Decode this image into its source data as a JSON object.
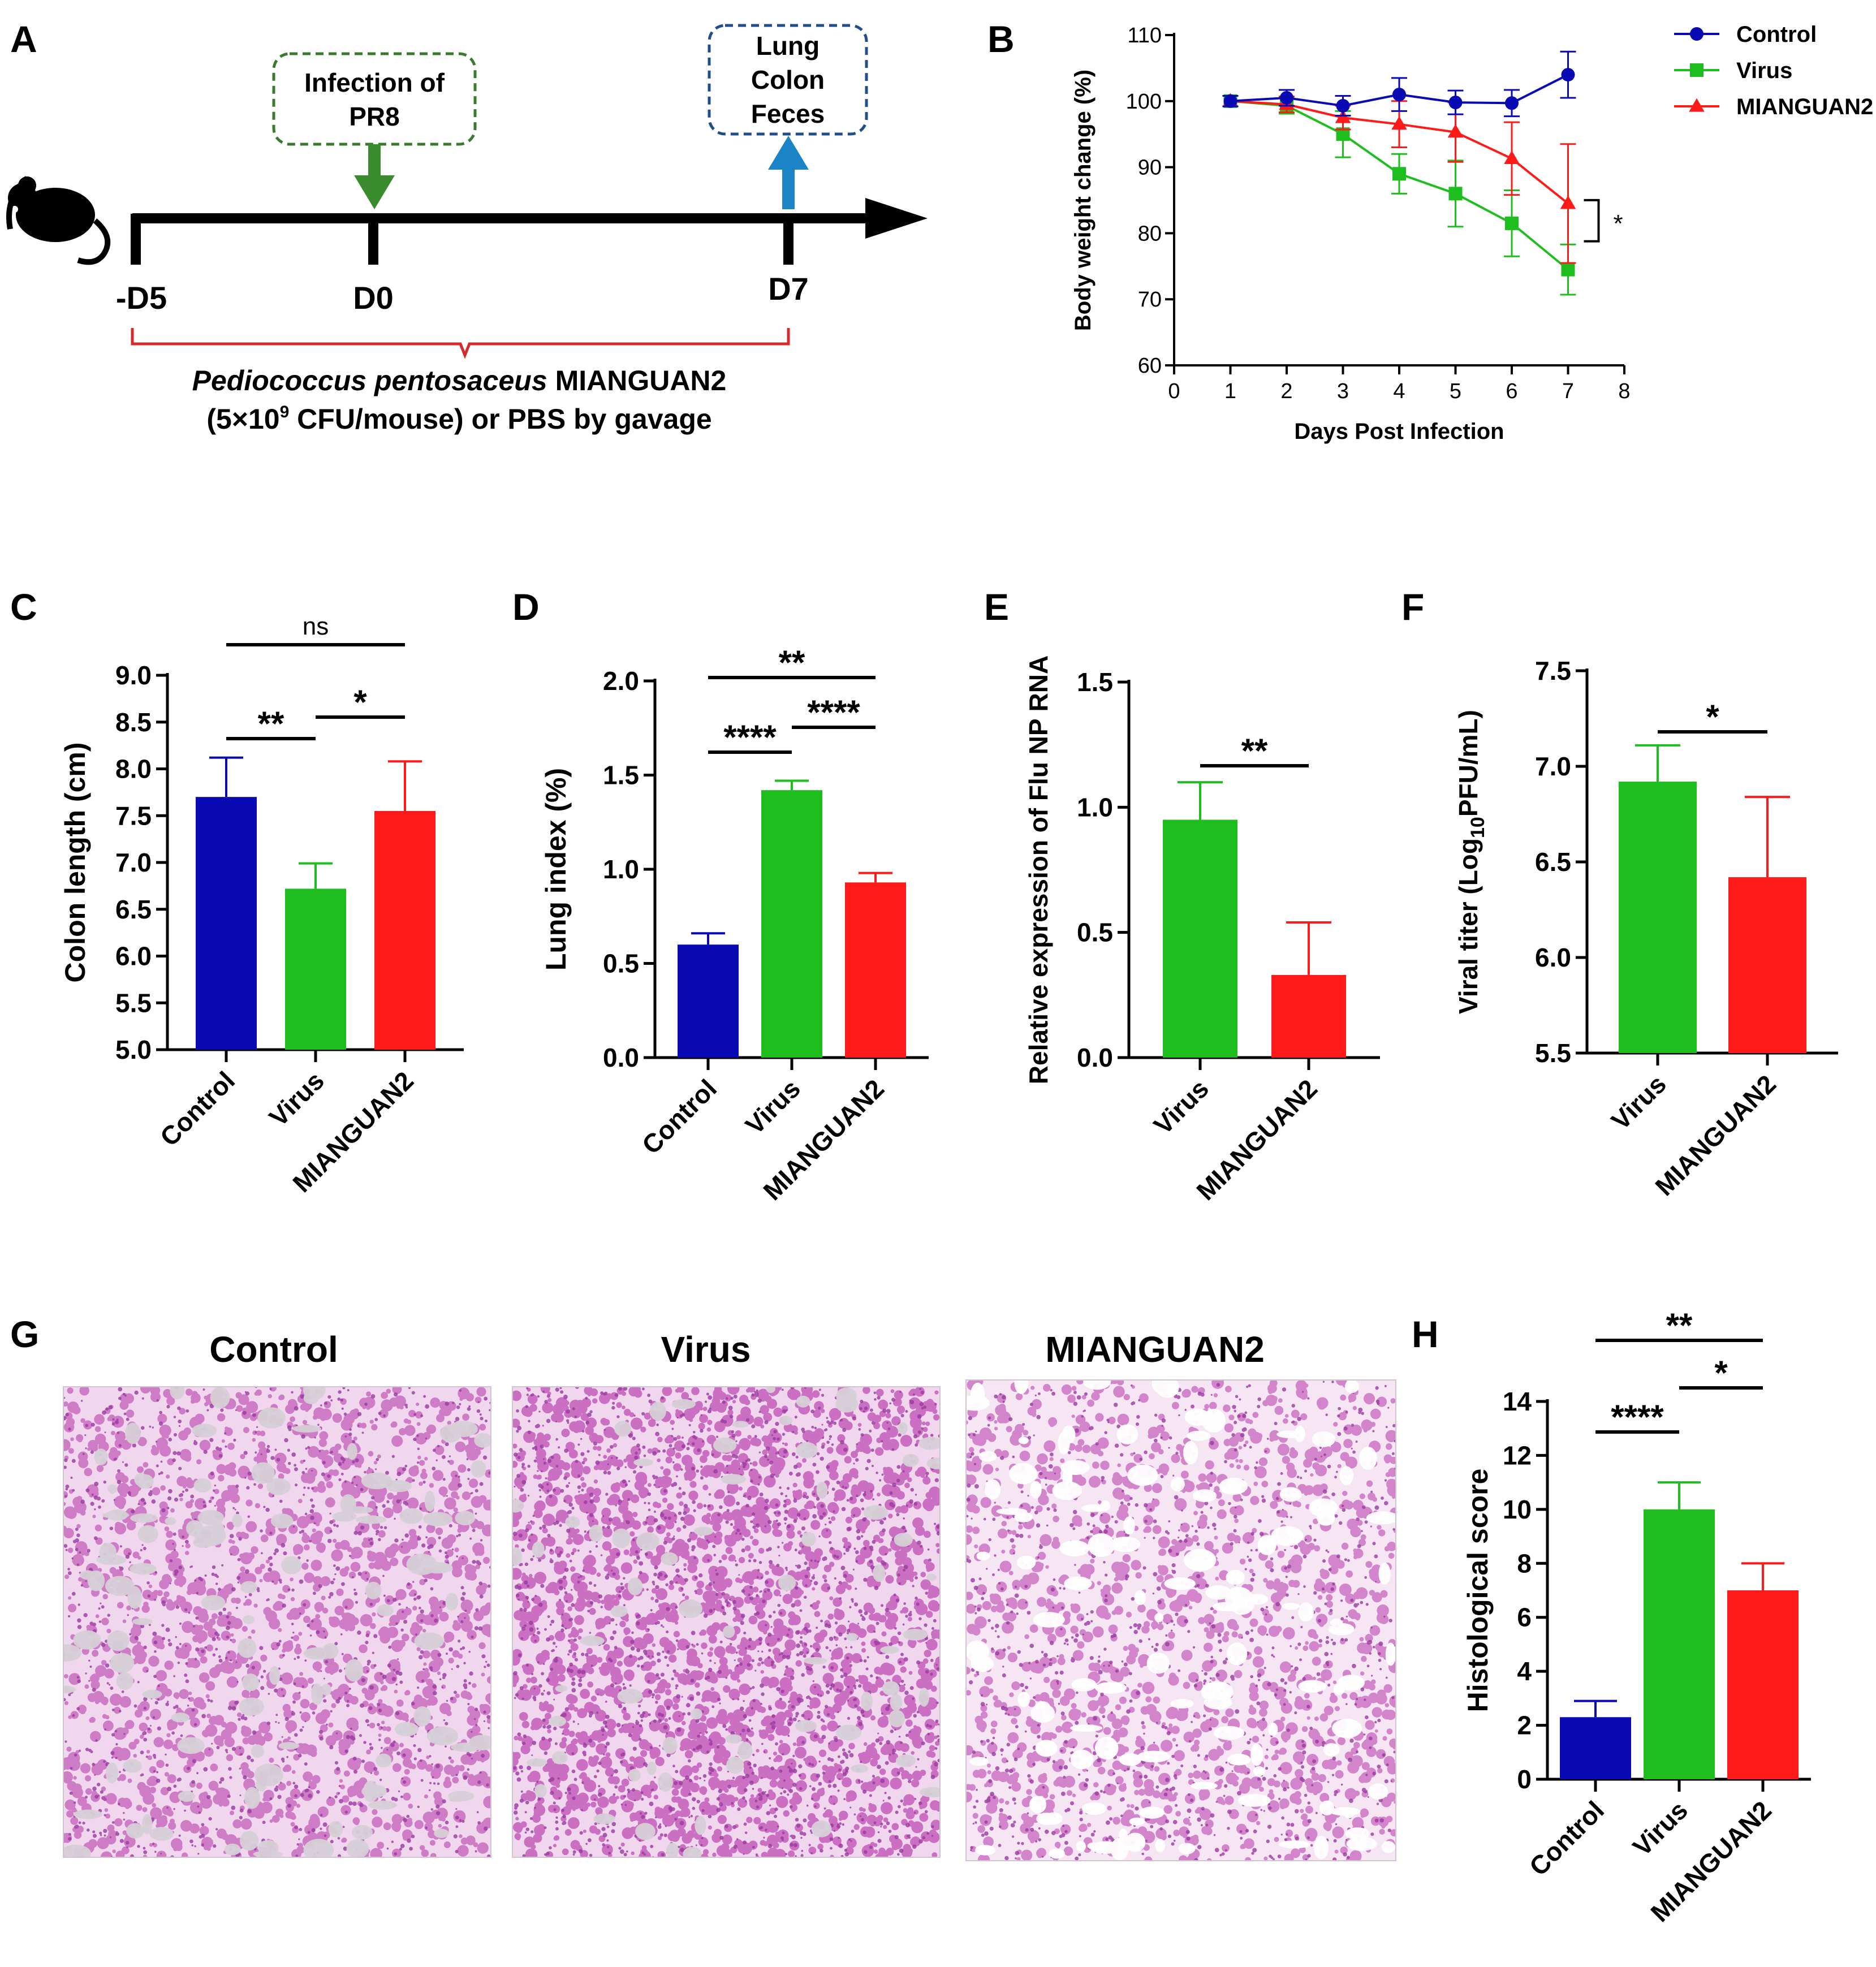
{
  "panels": {
    "A": {
      "letter": "A",
      "box_infection": [
        "Infection of",
        "PR8"
      ],
      "box_collect": [
        "Lung",
        "Colon",
        "Feces"
      ],
      "ticks": [
        "-D5",
        "D0",
        "D7"
      ],
      "treatment_italic": "Pediococcus pentosaceus",
      "treatment_strain": "MIANGUAN2",
      "dose_prefix": "(5×10",
      "dose_exp": "9",
      "dose_suffix": " CFU/mouse)  or PBS by gavage"
    },
    "B": {
      "letter": "B"
    },
    "C": {
      "letter": "C"
    },
    "D": {
      "letter": "D"
    },
    "E": {
      "letter": "E"
    },
    "F": {
      "letter": "F"
    },
    "G": {
      "letter": "G",
      "titles": [
        "Control",
        "Virus",
        "MIANGUAN2"
      ],
      "tissue_colors": {
        "bg": "#f0d7ee",
        "stain": "#c052b5",
        "dense": "#9a3aa0",
        "space": "#d6d0d6"
      },
      "density": [
        0.45,
        0.8,
        0.35
      ]
    },
    "H": {
      "letter": "H"
    }
  },
  "colors": {
    "control": "#0a0ab4",
    "virus": "#1ebe1e",
    "mianguan2": "#ff1a1a",
    "axis": "#000000",
    "arrow_green": "#3a8a2e",
    "arrow_blue": "#1b84c6",
    "box_green": "#3a7a2e",
    "box_blue": "#1f4f8a",
    "brace_red": "#d42a2a"
  },
  "chart_data": [
    {
      "panel": "B",
      "type": "line",
      "x": [
        1,
        2,
        3,
        4,
        5,
        6,
        7
      ],
      "xlabel": "Days Post Infection",
      "ylabel": "Body weight change (%)",
      "xlim": [
        0,
        8
      ],
      "ylim": [
        60,
        110
      ],
      "xticks": [
        0,
        1,
        2,
        3,
        4,
        5,
        6,
        7,
        8
      ],
      "yticks": [
        60,
        70,
        80,
        90,
        100,
        110
      ],
      "legend_position": "top-right",
      "series": [
        {
          "name": "Control",
          "marker": "circle",
          "values": [
            100,
            100.5,
            99.3,
            101,
            99.8,
            99.7,
            104
          ],
          "errors": [
            0.8,
            1.2,
            1.5,
            2.5,
            1.8,
            2.0,
            3.5
          ]
        },
        {
          "name": "Virus",
          "marker": "square",
          "values": [
            100,
            99.3,
            95,
            89,
            86,
            81.5,
            74.5
          ],
          "errors": [
            0.8,
            1.2,
            3.5,
            3.0,
            5.0,
            5.0,
            3.8
          ]
        },
        {
          "name": "MIANGUAN2",
          "marker": "triangle",
          "values": [
            100,
            99.5,
            97.5,
            96.5,
            95.3,
            91.3,
            84.5
          ],
          "errors": [
            0.8,
            1.2,
            1.8,
            3.5,
            4.5,
            5.5,
            9.0
          ]
        }
      ],
      "annotations": [
        {
          "text": "*",
          "between": [
            "Virus",
            "MIANGUAN2"
          ],
          "x": 7
        }
      ]
    },
    {
      "panel": "C",
      "type": "bar",
      "categories": [
        "Control",
        "Virus",
        "MIANGUAN2"
      ],
      "values": [
        7.7,
        6.72,
        7.55
      ],
      "errors": [
        0.42,
        0.27,
        0.53
      ],
      "ylabel": "Colon length (cm)",
      "ylim": [
        5.0,
        9.0
      ],
      "yticks": [
        "5.0",
        "5.5",
        "6.0",
        "6.5",
        "7.0",
        "7.5",
        "8.0",
        "8.5",
        "9.0"
      ],
      "significance": [
        {
          "from": 0,
          "to": 2,
          "label": "ns",
          "level": 2
        },
        {
          "from": 0,
          "to": 1,
          "label": "**",
          "level": 0
        },
        {
          "from": 1,
          "to": 2,
          "label": "*",
          "level": 1
        }
      ]
    },
    {
      "panel": "D",
      "type": "bar",
      "categories": [
        "Control",
        "Virus",
        "MIANGUAN2"
      ],
      "values": [
        0.6,
        1.42,
        0.93
      ],
      "errors": [
        0.06,
        0.05,
        0.05
      ],
      "ylabel": "Lung index (%)",
      "ylim": [
        0,
        2.0
      ],
      "yticks": [
        "0.0",
        "0.5",
        "1.0",
        "1.5",
        "2.0"
      ],
      "significance": [
        {
          "from": 0,
          "to": 2,
          "label": "**",
          "level": 2
        },
        {
          "from": 0,
          "to": 1,
          "label": "****",
          "level": 0
        },
        {
          "from": 1,
          "to": 2,
          "label": "****",
          "level": 1
        }
      ]
    },
    {
      "panel": "E",
      "type": "bar",
      "categories": [
        "Virus",
        "MIANGUAN2"
      ],
      "values": [
        0.95,
        0.33
      ],
      "errors": [
        0.15,
        0.21
      ],
      "ylabel": "Relative expression of Flu NP RNA",
      "ylim": [
        0,
        1.5
      ],
      "yticks": [
        "0.0",
        "0.5",
        "1.0",
        "1.5"
      ],
      "significance": [
        {
          "from": 0,
          "to": 1,
          "label": "**",
          "level": 0
        }
      ]
    },
    {
      "panel": "F",
      "type": "bar",
      "categories": [
        "Virus",
        "MIANGUAN2"
      ],
      "values": [
        6.92,
        6.42
      ],
      "errors": [
        0.19,
        0.42
      ],
      "ylabel_prefix": "Viral titer (Log",
      "ylabel_sub": "10",
      "ylabel_suffix": "PFU/mL)",
      "ylim": [
        5.5,
        7.5
      ],
      "yticks": [
        "5.5",
        "6.0",
        "6.5",
        "7.0",
        "7.5"
      ],
      "significance": [
        {
          "from": 0,
          "to": 1,
          "label": "*",
          "level": 0
        }
      ]
    },
    {
      "panel": "H",
      "type": "bar",
      "categories": [
        "Control",
        "Virus",
        "MIANGUAN2"
      ],
      "values": [
        2.3,
        10,
        7
      ],
      "errors": [
        0.6,
        1.0,
        1.0
      ],
      "ylabel": "Histological score",
      "ylim": [
        0,
        14
      ],
      "yticks": [
        "0",
        "2",
        "4",
        "6",
        "8",
        "10",
        "12",
        "14"
      ],
      "significance": [
        {
          "from": 0,
          "to": 2,
          "label": "**",
          "level": 2
        },
        {
          "from": 0,
          "to": 1,
          "label": "****",
          "level": 0
        },
        {
          "from": 1,
          "to": 2,
          "label": "*",
          "level": 1
        }
      ]
    }
  ]
}
